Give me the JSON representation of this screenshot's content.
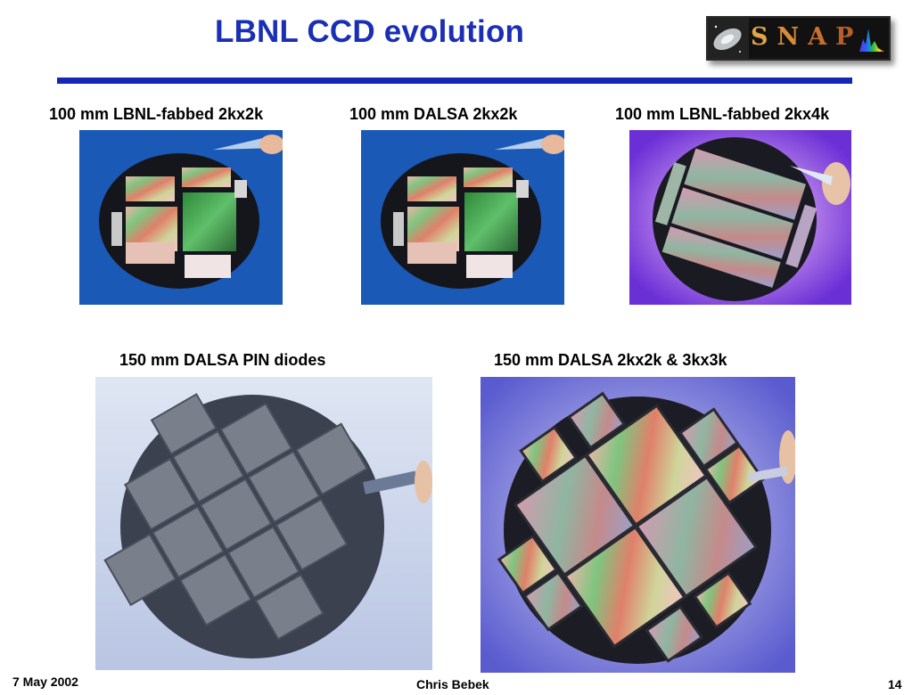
{
  "slide": {
    "title": "LBNL CCD evolution",
    "logo_text": [
      "S",
      "N",
      "A",
      "P"
    ],
    "accent_color": "#1a2fb4"
  },
  "wafers": [
    {
      "caption": "100 mm LBNL-fabbed 2kx2k"
    },
    {
      "caption": "100 mm DALSA 2kx2k"
    },
    {
      "caption": "100 mm LBNL-fabbed 2kx4k"
    },
    {
      "caption": "150 mm DALSA PIN diodes"
    },
    {
      "caption": "150 mm DALSA 2kx2k & 3kx3k"
    }
  ],
  "footer": {
    "date": "7 May 2002",
    "author": "Chris Bebek",
    "page": "14"
  }
}
